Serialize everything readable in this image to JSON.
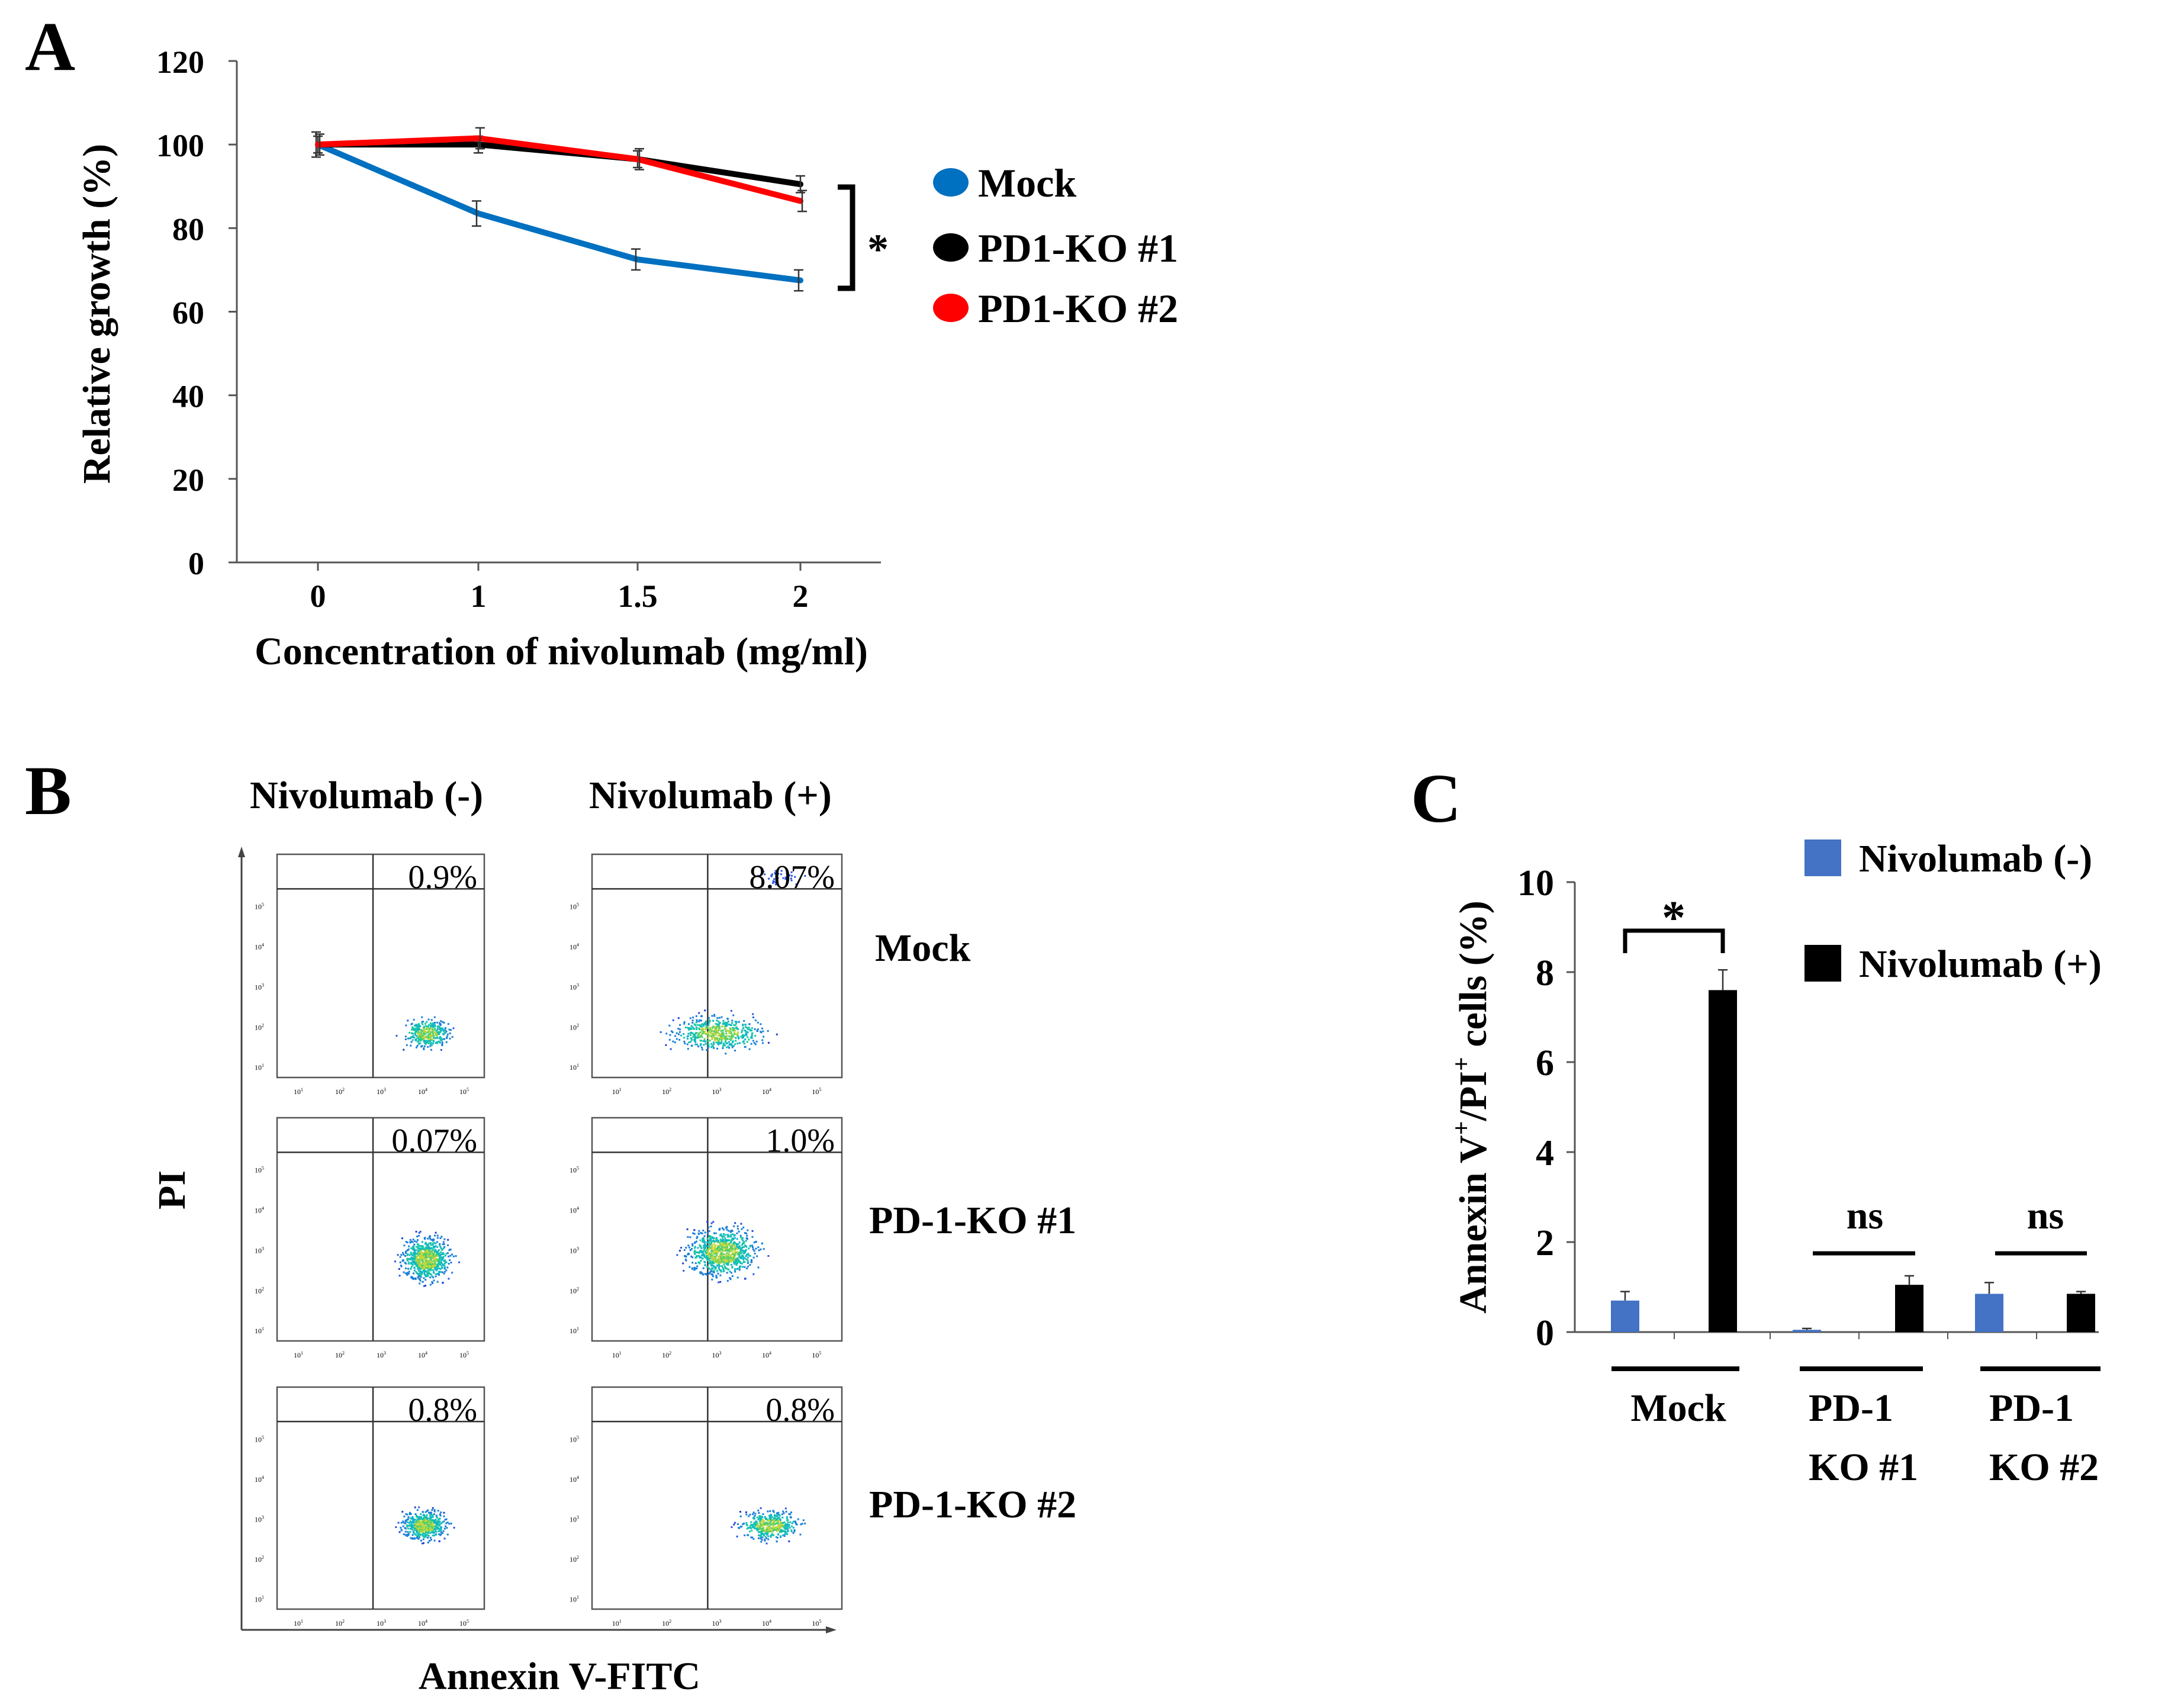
{
  "panels": {
    "A": {
      "letter": "A"
    },
    "B": {
      "letter": "B"
    },
    "C": {
      "letter": "C"
    }
  },
  "colors": {
    "mock": "#0070c0",
    "ko1": "#000000",
    "ko2": "#ff0000",
    "niv_neg": "#4472c4",
    "niv_pos": "#000000"
  },
  "chart_data": [
    {
      "panel": "A",
      "type": "line",
      "title": "",
      "xlabel": "Concentration of nivolumab (mg/ml)",
      "ylabel": "Relative growth (%)",
      "categories": [
        "0",
        "1",
        "1.5",
        "2"
      ],
      "ylim": [
        0,
        120
      ],
      "yticks": [
        0,
        20,
        40,
        60,
        80,
        100,
        120
      ],
      "series": [
        {
          "name": "Mock",
          "color": "#0070c0",
          "values": [
            100,
            83.5,
            72.5,
            67.5
          ],
          "errors": [
            3,
            3,
            2.5,
            2.5
          ]
        },
        {
          "name": "PD1-KO #1",
          "color": "#000000",
          "values": [
            100,
            100,
            96.5,
            90.5
          ],
          "errors": [
            2,
            2,
            2,
            2
          ]
        },
        {
          "name": "PD1-KO #2",
          "color": "#ff0000",
          "values": [
            100,
            101.5,
            96.5,
            86.5
          ],
          "errors": [
            2.5,
            2.5,
            2.5,
            2.5
          ]
        }
      ],
      "annotations": [
        "*"
      ],
      "legend": "right"
    },
    {
      "panel": "C",
      "type": "bar",
      "title": "",
      "xlabel": "",
      "ylabel": "Annexin V+/PI+ cells (%)",
      "ylabel_parts": {
        "main1": "Annexin V",
        "sup1": "+",
        "main2": "/PI",
        "sup2": "+",
        "main3": " cells (%)"
      },
      "categories": [
        "Mock",
        "PD-1 KO #1",
        "PD-1 KO #2"
      ],
      "category_lines": [
        [
          "Mock"
        ],
        [
          "PD-1",
          "KO #1"
        ],
        [
          "PD-1",
          "KO #2"
        ]
      ],
      "ylim": [
        0,
        10
      ],
      "yticks": [
        0,
        2,
        4,
        6,
        8,
        10
      ],
      "series": [
        {
          "name": "Nivolumab (-)",
          "color": "#4472c4",
          "values": [
            0.7,
            0.05,
            0.85
          ],
          "errors": [
            0.2,
            0.03,
            0.25
          ]
        },
        {
          "name": "Nivolumab (+)",
          "color": "#000000",
          "values": [
            7.6,
            1.05,
            0.85
          ],
          "errors": [
            0.45,
            0.2,
            0.05
          ]
        }
      ],
      "annotations": [
        "*",
        "ns",
        "ns"
      ],
      "legend": "top-right"
    }
  ],
  "flow": {
    "col_headers": [
      "Nivolumab (-)",
      "Nivolumab (+)"
    ],
    "row_labels": [
      "Mock",
      "PD-1-KO #1",
      "PD-1-KO #2"
    ],
    "percentages": [
      [
        "0.9%",
        "8.07%"
      ],
      [
        "0.07%",
        "1.0%"
      ],
      [
        "0.8%",
        "0.8%"
      ]
    ],
    "xlabel": "Annexin V-FITC",
    "ylabel": "PI",
    "tick_main": "10",
    "tick_exps": [
      "1",
      "2",
      "3",
      "4",
      "5"
    ]
  }
}
